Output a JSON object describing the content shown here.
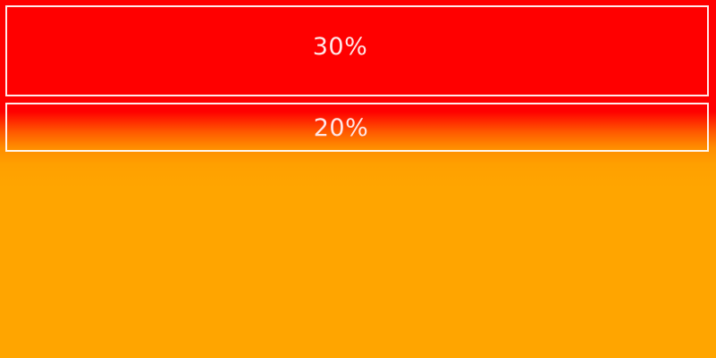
{
  "segments": [
    {
      "label": "30%",
      "value": 30
    },
    {
      "label": "20%",
      "value": 20
    }
  ],
  "colors": {
    "primary_fill": "#ff0000",
    "secondary_fill": "#ffa500",
    "border": "#ffffff",
    "label_text": "#ffe6e6"
  }
}
